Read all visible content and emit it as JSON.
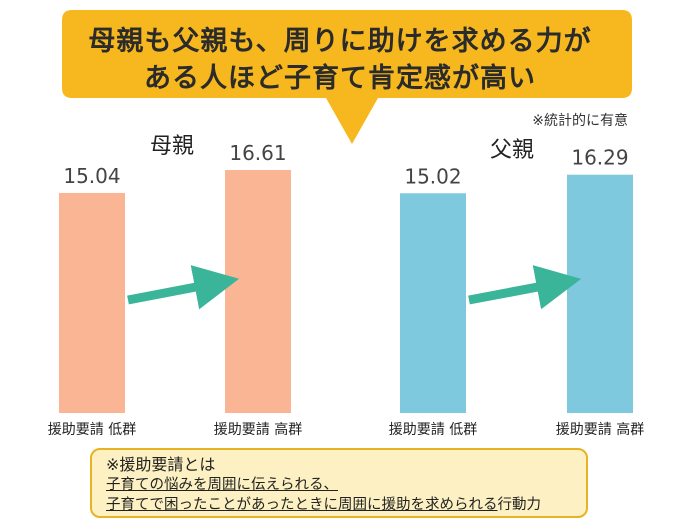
{
  "header": {
    "title_line1": "母親も父親も、周りに助けを求める力が",
    "title_line2": "ある人ほど子育て肯定感が高い"
  },
  "note": "※統計的に有意",
  "colors": {
    "bubble": "#f6b81e",
    "mother_bar": "#f9b594",
    "father_bar": "#7ec9de",
    "arrow": "#3bb59a",
    "box_fill": "#fdf1c4",
    "box_border": "#e8b322"
  },
  "chart_data": [
    {
      "type": "bar",
      "title": "母親",
      "categories": [
        "援助要請 低群",
        "援助要請 高群"
      ],
      "values": [
        15.04,
        16.61
      ],
      "value_labels": [
        "15.04",
        "16.61"
      ]
    },
    {
      "type": "bar",
      "title": "父親",
      "categories": [
        "援助要請 低群",
        "援助要請 高群"
      ],
      "values": [
        15.02,
        16.29
      ],
      "value_labels": [
        "15.02",
        "16.29"
      ]
    }
  ],
  "definition": {
    "title": "※援助要請とは",
    "line1": "子育ての悩みを周囲に伝えられる、",
    "line2_underlined": "子育てで困ったことがあったときに周囲に援助を求められる",
    "line2_rest": "行動力"
  }
}
